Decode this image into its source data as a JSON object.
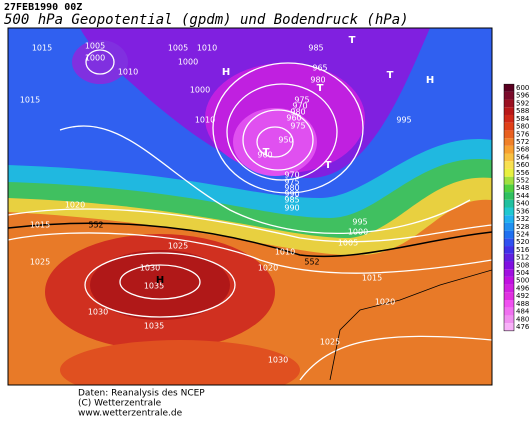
{
  "header": {
    "date": "27FEB1990 00Z",
    "title": "500 hPa Geopotential (gpdm) und Bodendruck (hPa)"
  },
  "map": {
    "labels": [
      "1015",
      "1005",
      "1000",
      "1010",
      "1015",
      "1005",
      "1010",
      "1000",
      "1010",
      "1000",
      "985",
      "965",
      "980",
      "975",
      "970",
      "980",
      "960",
      "975",
      "950",
      "960",
      "970",
      "975",
      "980",
      "990",
      "985",
      "990",
      "995",
      "1020",
      "1015",
      "1025",
      "1030",
      "1035",
      "1035",
      "1030",
      "1025",
      "1020",
      "1010",
      "1005",
      "1000",
      "995",
      "1015",
      "1020",
      "1025",
      "1030",
      "552",
      "552",
      "H",
      "H",
      "H",
      "T",
      "T",
      "T",
      "T",
      "T"
    ]
  },
  "colorbar": {
    "ticks": [
      476,
      480,
      484,
      488,
      492,
      496,
      500,
      504,
      508,
      512,
      516,
      520,
      524,
      528,
      532,
      536,
      540,
      544,
      548,
      552,
      556,
      560,
      564,
      568,
      572,
      576,
      580,
      584,
      588,
      592,
      596,
      600
    ],
    "colors": [
      "#f8b0f8",
      "#f090f0",
      "#f070f0",
      "#f050f0",
      "#e030e0",
      "#d020e0",
      "#c010e0",
      "#a010e0",
      "#8010e0",
      "#6020e0",
      "#4030e8",
      "#3050f0",
      "#2070f0",
      "#2090f0",
      "#20b0f0",
      "#20c8d0",
      "#20c0a0",
      "#30c060",
      "#50d040",
      "#a0e040",
      "#e8f040",
      "#f8e050",
      "#f8c040",
      "#f8a030",
      "#f08028",
      "#e86020",
      "#e04018",
      "#d02818",
      "#b81818",
      "#9a1020",
      "#7a0a2a",
      "#5a0020"
    ]
  },
  "footer": {
    "lines": [
      "Daten: Reanalysis des NCEP",
      "(C) Wetterzentrale",
      "www.wetterzentrale.de"
    ]
  }
}
